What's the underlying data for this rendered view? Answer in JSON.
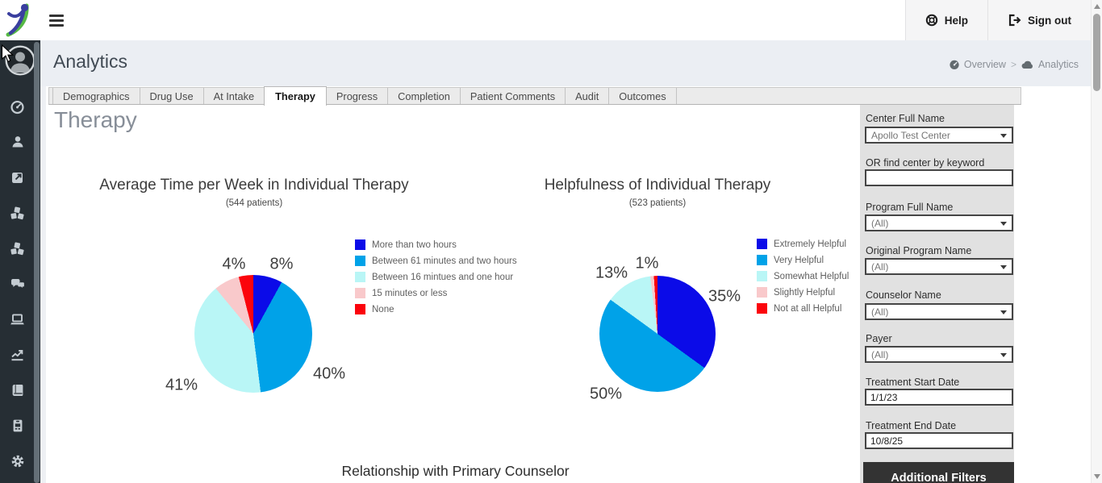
{
  "topbar": {
    "help_label": "Help",
    "signout_label": "Sign out"
  },
  "header": {
    "title": "Analytics",
    "breadcrumb_overview": "Overview",
    "breadcrumb_separator": ">",
    "breadcrumb_current": "Analytics"
  },
  "tabs": {
    "items": [
      "Demographics",
      "Drug Use",
      "At Intake",
      "Therapy",
      "Progress",
      "Completion",
      "Patient Comments",
      "Audit",
      "Outcomes"
    ],
    "active": "Therapy"
  },
  "sidebar": {
    "icons": [
      "avatar",
      "dashboard-gauge",
      "user",
      "external-link",
      "cubes",
      "cubes-2",
      "comments",
      "laptop",
      "chart-line",
      "book",
      "id-badge",
      "gear"
    ]
  },
  "page": {
    "heading": "Therapy",
    "section_heading": "Relationship with Primary Counselor"
  },
  "filters": {
    "center_label": "Center Full Name",
    "center_value": "Apollo Test Center",
    "keyword_label": "OR find center by keyword",
    "keyword_value": "",
    "program_label": "Program Full Name",
    "program_value": "(All)",
    "original_program_label": "Original Program Name",
    "original_program_value": "(All)",
    "counselor_label": "Counselor Name",
    "counselor_value": "(All)",
    "payer_label": "Payer",
    "payer_value": "(All)",
    "start_label": "Treatment Start Date",
    "start_value": "1/1/23",
    "end_label": "Treatment End Date",
    "end_value": "10/8/25",
    "additional_button": "Additional Filters"
  },
  "colors": {
    "sidebar_bg": "#262e34",
    "band_bg": "#ebeef3",
    "filter_panel_bg": "#e1e1e1",
    "dark_button_bg": "#333333",
    "pie_dark_blue": "#0b0be8",
    "pie_light_blue": "#00a2e8",
    "pie_pale_cyan": "#b9f6f6",
    "pie_pink": "#f9c9cb",
    "pie_red": "#fb040c"
  },
  "chart_data": [
    {
      "type": "pie",
      "title": "Average Time per Week in Individual Therapy",
      "subtitle": "(544 patients)",
      "legend_position": "right",
      "slices": [
        {
          "label": "More than two hours",
          "value": 8,
          "color": "#0b0be8",
          "pct_label": "8%",
          "label_offset": [
            35,
            -86
          ]
        },
        {
          "label": "Between 61 minutes and two hours",
          "value": 40,
          "color": "#00a2e8",
          "pct_label": "40%",
          "label_offset": [
            94,
            50
          ]
        },
        {
          "label": "Between 16 mintues and one hour",
          "value": 41,
          "color": "#b9f6f6",
          "pct_label": "41%",
          "label_offset": [
            -89,
            64
          ]
        },
        {
          "label": "15 minutes or less",
          "value": 7,
          "color": "#f9c9cb",
          "pct_label": null,
          "label_offset": null
        },
        {
          "label": "None",
          "value": 4,
          "color": "#fb040c",
          "pct_label": "4%",
          "label_offset": [
            -24,
            -86
          ]
        }
      ]
    },
    {
      "type": "pie",
      "title": "Helpfulness of Individual Therapy",
      "subtitle": "(523 patients)",
      "legend_position": "right",
      "slices": [
        {
          "label": "Extremely Helpful",
          "value": 35,
          "color": "#0b0be8",
          "pct_label": "35%",
          "label_offset": [
            83,
            -46
          ]
        },
        {
          "label": "Very Helpful",
          "value": 50,
          "color": "#00a2e8",
          "pct_label": "50%",
          "label_offset": [
            -64,
            75
          ]
        },
        {
          "label": "Somewhat Helpful",
          "value": 13,
          "color": "#b9f6f6",
          "pct_label": "13%",
          "label_offset": [
            -57,
            -75
          ]
        },
        {
          "label": "Slightly Helpful",
          "value": 1,
          "color": "#f9c9cb",
          "pct_label": "1%",
          "label_offset": [
            -13,
            -87
          ]
        },
        {
          "label": "Not at all Helpful",
          "value": 1,
          "color": "#fb040c",
          "pct_label": null,
          "label_offset": null
        }
      ]
    }
  ]
}
